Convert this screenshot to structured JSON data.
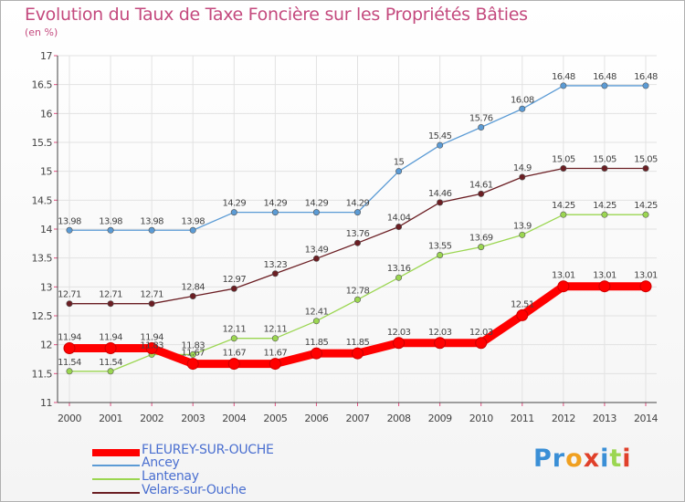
{
  "title": "Evolution du Taux de Taxe Foncière sur les Propriétés Bâties",
  "unit_label": "(en %)",
  "logo_text": "Proxiti",
  "colors": {
    "background": "#ffffff",
    "title": "#c44a7e",
    "axis": "#444444",
    "grid": "#e2e2e2",
    "legend_text": "#4a6fd0"
  },
  "chart_data": {
    "type": "line",
    "title": "Evolution du Taux de Taxe Foncière sur les Propriétés Bâties",
    "ylabel": "(en %)",
    "xlabel": "",
    "x": [
      "2000",
      "2001",
      "2002",
      "2003",
      "2004",
      "2005",
      "2006",
      "2007",
      "2008",
      "2009",
      "2010",
      "2011",
      "2012",
      "2013",
      "2014"
    ],
    "ylim": [
      11,
      17
    ],
    "yticks": [
      "11",
      "11.5",
      "12",
      "12.5",
      "13",
      "13.5",
      "14",
      "14.5",
      "15",
      "15.5",
      "16",
      "16.5",
      "17"
    ],
    "ytick_values": [
      11,
      11.5,
      12,
      12.5,
      13,
      13.5,
      14,
      14.5,
      15,
      15.5,
      16,
      16.5,
      17
    ],
    "grid": true,
    "legend_position": "bottom-left",
    "series": [
      {
        "name": "FLEUREY-SUR-OUCHE",
        "color": "#ff0000",
        "values": [
          11.94,
          11.94,
          11.94,
          11.67,
          11.67,
          11.67,
          11.85,
          11.85,
          12.03,
          12.03,
          12.03,
          12.51,
          13.01,
          13.01,
          13.01
        ],
        "labels": [
          "11.94",
          "11.94",
          "11.94",
          "11.67",
          "11.67",
          "11.67",
          "11.85",
          "11.85",
          "12.03",
          "12.03",
          "12.03",
          "12.51",
          "13.01",
          "13.01",
          "13.01"
        ]
      },
      {
        "name": "Ancey",
        "color": "#5b9bd5",
        "values": [
          13.98,
          13.98,
          13.98,
          13.98,
          14.29,
          14.29,
          14.29,
          14.29,
          15,
          15.45,
          15.76,
          16.08,
          16.48,
          16.48,
          16.48
        ],
        "labels": [
          "13.98",
          "13.98",
          "13.98",
          "13.98",
          "14.29",
          "14.29",
          "14.29",
          "14.29",
          "15",
          "15.45",
          "15.76",
          "16.08",
          "16.48",
          "16.48",
          "16.48"
        ]
      },
      {
        "name": "Lantenay",
        "color": "#9bd651",
        "values": [
          11.54,
          11.54,
          11.83,
          11.83,
          12.11,
          12.11,
          12.41,
          12.78,
          13.16,
          13.55,
          13.69,
          13.9,
          14.25,
          14.25,
          14.25
        ],
        "labels": [
          "11.54",
          "11.54",
          "11.83",
          "11.83",
          "12.11",
          "12.11",
          "12.41",
          "12.78",
          "13.16",
          "13.55",
          "13.69",
          "13.9",
          "14.25",
          "14.25",
          "14.25"
        ]
      },
      {
        "name": "Velars-sur-Ouche",
        "color": "#6b1e23",
        "values": [
          12.71,
          12.71,
          12.71,
          12.84,
          12.97,
          13.23,
          13.49,
          13.76,
          14.04,
          14.46,
          14.61,
          14.9,
          15.05,
          15.05,
          15.05
        ],
        "labels": [
          "12.71",
          "12.71",
          "12.71",
          "12.84",
          "12.97",
          "13.23",
          "13.49",
          "13.76",
          "14.04",
          "14.46",
          "14.61",
          "14.9",
          "15.05",
          "15.05",
          "15.05"
        ]
      }
    ]
  }
}
